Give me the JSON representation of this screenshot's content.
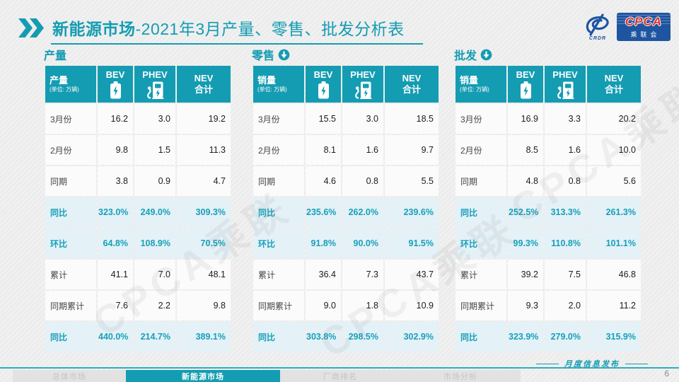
{
  "header": {
    "title_bold": "新能源市场",
    "title_rest": "-2021年3月产量、零售、批发分析表",
    "logo": {
      "emblem_text": "CRDR",
      "cpca": "CPCA",
      "org": "乘联会"
    }
  },
  "colors": {
    "accent": "#149cb2",
    "accent_text": "#17a0b8",
    "highlight_bg": "#e4f1f7",
    "cell_bg": "#fbfbfb",
    "logo_blue": "#1e55a0",
    "logo_red": "#d8302f"
  },
  "watermark": "CPCA乘联",
  "tables": [
    {
      "key": "production",
      "section_label": "产量",
      "arrow": false,
      "header": {
        "label": "产量",
        "unit": "(单位: 万辆)",
        "col_bev": "BEV",
        "col_phev": "PHEV",
        "col_nev_line1": "NEV",
        "col_nev_line2": "合计"
      },
      "rows": [
        {
          "label": "3月份",
          "values": [
            "16.2",
            "3.0",
            "19.2"
          ],
          "highlight": false
        },
        {
          "label": "2月份",
          "values": [
            "9.8",
            "1.5",
            "11.3"
          ],
          "highlight": false
        },
        {
          "label": "同期",
          "values": [
            "3.8",
            "0.9",
            "4.7"
          ],
          "highlight": false
        },
        {
          "label": "同比",
          "values": [
            "323.0%",
            "249.0%",
            "309.3%"
          ],
          "highlight": true
        },
        {
          "label": "环比",
          "values": [
            "64.8%",
            "108.9%",
            "70.5%"
          ],
          "highlight": true
        },
        {
          "label": "累计",
          "values": [
            "41.1",
            "7.0",
            "48.1"
          ],
          "highlight": false
        },
        {
          "label": "同期累计",
          "values": [
            "7.6",
            "2.2",
            "9.8"
          ],
          "highlight": false
        },
        {
          "label": "同比",
          "values": [
            "440.0%",
            "214.7%",
            "389.1%"
          ],
          "highlight": true
        }
      ]
    },
    {
      "key": "retail",
      "section_label": "零售",
      "arrow": true,
      "header": {
        "label": "销量",
        "unit": "(单位: 万辆)",
        "col_bev": "BEV",
        "col_phev": "PHEV",
        "col_nev_line1": "NEV",
        "col_nev_line2": "合计"
      },
      "rows": [
        {
          "label": "3月份",
          "values": [
            "15.5",
            "3.0",
            "18.5"
          ],
          "highlight": false
        },
        {
          "label": "2月份",
          "values": [
            "8.1",
            "1.6",
            "9.7"
          ],
          "highlight": false
        },
        {
          "label": "同期",
          "values": [
            "4.6",
            "0.8",
            "5.5"
          ],
          "highlight": false
        },
        {
          "label": "同比",
          "values": [
            "235.6%",
            "262.0%",
            "239.6%"
          ],
          "highlight": true
        },
        {
          "label": "环比",
          "values": [
            "91.8%",
            "90.0%",
            "91.5%"
          ],
          "highlight": true
        },
        {
          "label": "累计",
          "values": [
            "36.4",
            "7.3",
            "43.7"
          ],
          "highlight": false
        },
        {
          "label": "同期累计",
          "values": [
            "9.0",
            "1.8",
            "10.9"
          ],
          "highlight": false
        },
        {
          "label": "同比",
          "values": [
            "303.8%",
            "298.5%",
            "302.9%"
          ],
          "highlight": true
        }
      ]
    },
    {
      "key": "wholesale",
      "section_label": "批发",
      "arrow": true,
      "header": {
        "label": "销量",
        "unit": "(单位: 万辆)",
        "col_bev": "BEV",
        "col_phev": "PHEV",
        "col_nev_line1": "NEV",
        "col_nev_line2": "合计"
      },
      "rows": [
        {
          "label": "3月份",
          "values": [
            "16.9",
            "3.3",
            "20.2"
          ],
          "highlight": false
        },
        {
          "label": "2月份",
          "values": [
            "8.5",
            "1.6",
            "10.0"
          ],
          "highlight": false
        },
        {
          "label": "同期",
          "values": [
            "4.8",
            "0.8",
            "5.6"
          ],
          "highlight": false
        },
        {
          "label": "同比",
          "values": [
            "252.5%",
            "313.3%",
            "261.3%"
          ],
          "highlight": true
        },
        {
          "label": "环比",
          "values": [
            "99.3%",
            "110.8%",
            "101.1%"
          ],
          "highlight": true
        },
        {
          "label": "累计",
          "values": [
            "39.2",
            "7.5",
            "46.8"
          ],
          "highlight": false
        },
        {
          "label": "同期累计",
          "values": [
            "9.3",
            "2.0",
            "11.2"
          ],
          "highlight": false
        },
        {
          "label": "同比",
          "values": [
            "323.9%",
            "279.0%",
            "315.9%"
          ],
          "highlight": true
        }
      ]
    }
  ],
  "footer": {
    "tabs": [
      {
        "label": "总体市场",
        "active": false
      },
      {
        "label": "新能源市场",
        "active": true
      },
      {
        "label": "厂商排名",
        "active": false
      },
      {
        "label": "市场分析",
        "active": false
      }
    ],
    "release_note": "月度信息发布",
    "page_number": "6"
  }
}
